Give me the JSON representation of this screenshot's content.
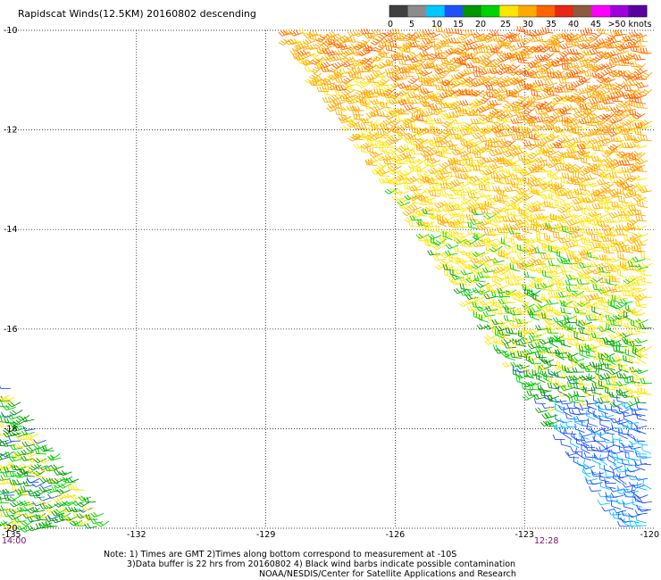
{
  "title": "Rapidscat Winds(12.5KM) 20160802 descending",
  "legend": {
    "ticks": [
      "0",
      "5",
      "10",
      "15",
      "20",
      "25",
      "30",
      "35",
      "40",
      "45",
      ">50 knots"
    ],
    "colors": [
      "#404040",
      "#8c8c8c",
      "#00c8ff",
      "#1e50ff",
      "#009600",
      "#00d200",
      "#ffe600",
      "#ffaa00",
      "#ff6400",
      "#e62814",
      "#8c5a3c",
      "#ff00ff",
      "#a000dc",
      "#5a00a0"
    ]
  },
  "axes": {
    "lat_labels": [
      "-10",
      "-12",
      "-14",
      "-16",
      "-18",
      "-20"
    ],
    "lon_labels": [
      "-135",
      "-132",
      "-129",
      "-126",
      "-123",
      "-120"
    ],
    "lat_range": [
      -20,
      -10
    ],
    "lon_range": [
      -135,
      -120
    ]
  },
  "times": {
    "left": "14:00",
    "right": "12:28"
  },
  "notes": {
    "line1": "Note: 1) Times are GMT 2)Times along bottom correspond to measurement at -10S",
    "line2": "3)Data buffer is 22 hrs from 20160802 4) Black wind barbs indicate possible contamination",
    "line3": "NOAA/NESDIS/Center for Satellite Applications and Research"
  }
}
